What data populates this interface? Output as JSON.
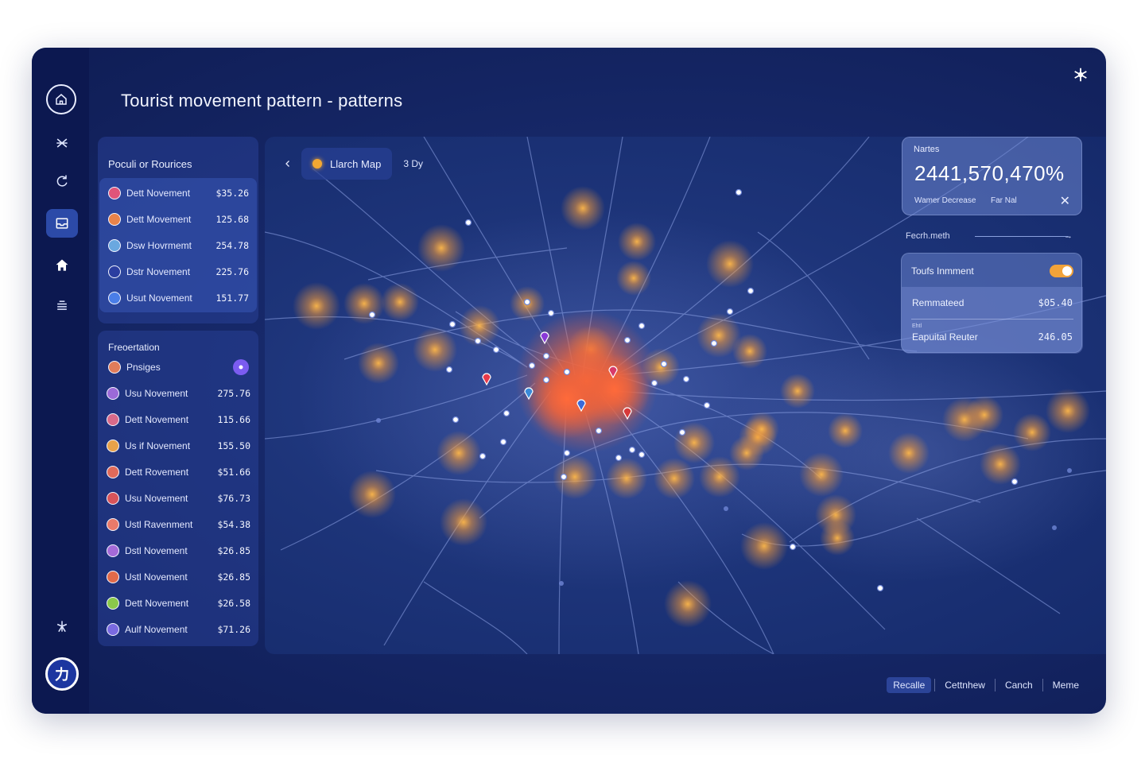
{
  "app": {
    "title": "Tourist movement pattern - patterns"
  },
  "sidebar": {
    "items": [
      {
        "icon": "home-icon"
      },
      {
        "icon": "network-icon"
      },
      {
        "icon": "refresh-icon"
      },
      {
        "icon": "inbox-icon",
        "active": true
      },
      {
        "icon": "attraction-icon"
      },
      {
        "icon": "layers-icon"
      },
      {
        "icon": "star-icon"
      }
    ],
    "user_initial": "力"
  },
  "popular_panel": {
    "heading": "Poculi or Rourices",
    "rows": [
      {
        "label": "Dett Novement",
        "value": "$35.26",
        "avatar_color": "#e0547a"
      },
      {
        "label": "Dett Movement",
        "value": "125.68",
        "avatar_color": "#e8834a"
      },
      {
        "label": "Dsw Hovrmemt",
        "value": "254.78",
        "avatar_color": "#6aa8e0"
      },
      {
        "label": "Dstr Novement",
        "value": "225.76",
        "avatar_color": "#2b3ea0"
      },
      {
        "label": "Usut Novement",
        "value": "151.77",
        "avatar_color": "#4a7ee8"
      }
    ]
  },
  "filter_panel": {
    "heading": "Freoertation",
    "filter_label": "Pnsiges",
    "rows": [
      {
        "label": "Usu Novement",
        "value": "275.76",
        "avatar_color": "#9b6ad8"
      },
      {
        "label": "Dett Novement",
        "value": "115.66",
        "avatar_color": "#d86a8a"
      },
      {
        "label": "Us if Novement",
        "value": "155.50",
        "avatar_color": "#e8a24a"
      },
      {
        "label": "Dett Rovement",
        "value": "$51.66",
        "avatar_color": "#e06a5a"
      },
      {
        "label": "Usu Novement",
        "value": "$76.73",
        "avatar_color": "#d8545a"
      },
      {
        "label": "Ustl Ravenment",
        "value": "$54.38",
        "avatar_color": "#e87a6a"
      },
      {
        "label": "Dstl Novement",
        "value": "$26.85",
        "avatar_color": "#a46ad8"
      },
      {
        "label": "Ustl Novement",
        "value": "$26.85",
        "avatar_color": "#e06a4a"
      },
      {
        "label": "Dett Novement",
        "value": "$26.58",
        "avatar_color": "#8ac84a"
      },
      {
        "label": "Aulf Novement",
        "value": "$71.26",
        "avatar_color": "#7a6ae0"
      }
    ]
  },
  "map": {
    "tab_label": "Llarch Map",
    "period": "3 Dy"
  },
  "stat_card": {
    "small_label": "Nartes",
    "big_value": "2441,570,470%",
    "foot_left": "Wamer Decrease",
    "foot_right": "Far Nal"
  },
  "connector": {
    "label": "Fecrh.meth"
  },
  "toggle_card": {
    "toggle_label": "Toufs Inmment",
    "toggle_on": true,
    "rows": [
      {
        "label": "Remmateed",
        "value": "$05.40"
      },
      {
        "label": "Eapuital Reuter",
        "value": "246.05",
        "tiny": "Ehtl"
      }
    ]
  },
  "bottom_nav": {
    "items": [
      "Recalle",
      "Cettnhew",
      "Canch",
      "Meme"
    ],
    "active_index": 0
  },
  "colors": {
    "app_bg": "#17296a",
    "sidebar_bg": "#0c1850",
    "accent_orange": "#f3a832",
    "hotspot_red": "#f25a3a"
  }
}
